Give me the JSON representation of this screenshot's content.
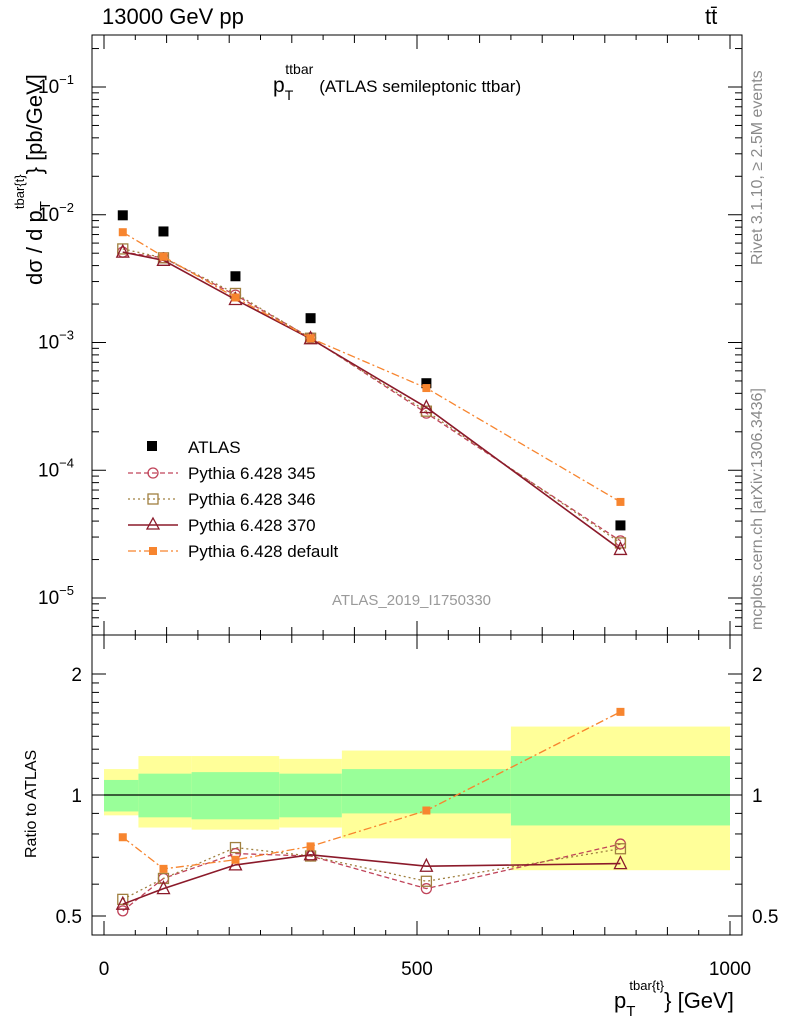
{
  "header": {
    "left": "13000 GeV pp",
    "right": "tt̄"
  },
  "plot": {
    "title_main": "p",
    "title_sub": "T",
    "title_sup": "ttbar",
    "title_rest": "(ATLAS semileptonic ttbar)",
    "watermark": "ATLAS_2019_I1750330",
    "side_rivet": "Rivet 3.1.10, ≥ 2.5M events",
    "side_mcplots": "mcplots.cern.ch [arXiv:1306.3436]",
    "ylabel_main": "dσ / d p",
    "ylabel_main_sub": "T",
    "ylabel_main_sup": "tbar{t}",
    "ylabel_main_unit": "} [pb/GeV]",
    "ylabel_ratio": "Ratio to ATLAS",
    "xlabel": "p",
    "xlabel_sub": "T",
    "xlabel_sup": "tbar{t}",
    "xlabel_unit": "} [GeV]",
    "yticks_main": [
      "10",
      "10",
      "10",
      "10",
      "10"
    ],
    "yticks_main_exp": [
      "−1",
      "−2",
      "−3",
      "−4",
      "−5"
    ],
    "yticks_ratio": [
      "2",
      "1",
      "0.5"
    ],
    "xticks": [
      "0",
      "500",
      "1000"
    ]
  },
  "colors": {
    "atlas": "#000000",
    "p345": "#c0445a",
    "p346": "#a08040",
    "p370": "#8b1a2a",
    "pdefault": "#f7852f",
    "band_inner": "#99ff99",
    "band_outer": "#ffff99"
  },
  "chart_data": {
    "type": "scatter",
    "xlim": [
      0,
      1000
    ],
    "ylim_main": [
      5.5e-06,
      0.25
    ],
    "yscale_main": "log",
    "ylim_ratio": [
      0.4,
      2.3
    ],
    "yscale_ratio": "log",
    "legend_placement": "lower-left",
    "x": [
      30,
      95,
      210,
      330,
      515,
      825
    ],
    "bins": [
      [
        0,
        55
      ],
      [
        55,
        140
      ],
      [
        140,
        280
      ],
      [
        280,
        380
      ],
      [
        380,
        650
      ],
      [
        650,
        1000
      ]
    ],
    "series": [
      {
        "name": "ATLAS",
        "style": "data",
        "values": [
          0.0099,
          0.0074,
          0.0033,
          0.00155,
          0.00048,
          3.7e-05
        ]
      },
      {
        "name": "Pythia 6.428 345",
        "style": "circle",
        "values": [
          0.0051,
          0.0046,
          0.00235,
          0.00109,
          0.00028,
          2.8e-05
        ],
        "ratio": [
          0.515,
          0.62,
          0.715,
          0.705,
          0.585,
          0.755
        ]
      },
      {
        "name": "Pythia 6.428 346",
        "style": "square",
        "values": [
          0.0054,
          0.0046,
          0.00242,
          0.00108,
          0.00029,
          2.7e-05
        ],
        "ratio": [
          0.55,
          0.62,
          0.74,
          0.705,
          0.61,
          0.735
        ]
      },
      {
        "name": "Pythia 6.428 370",
        "style": "triangle",
        "values": [
          0.0051,
          0.0044,
          0.00217,
          0.00107,
          0.00031,
          2.4e-05
        ],
        "ratio": [
          0.535,
          0.585,
          0.67,
          0.71,
          0.665,
          0.675
        ]
      },
      {
        "name": "Pythia 6.428 default",
        "style": "fsquare",
        "values": [
          0.0073,
          0.0047,
          0.00225,
          0.00108,
          0.00044,
          5.65e-05
        ],
        "ratio": [
          0.785,
          0.655,
          0.69,
          0.745,
          0.915,
          1.61
        ]
      }
    ],
    "ratio_band_inner": [
      [
        0.91,
        1.09
      ],
      [
        0.88,
        1.13
      ],
      [
        0.87,
        1.14
      ],
      [
        0.88,
        1.13
      ],
      [
        0.9,
        1.16
      ],
      [
        0.84,
        1.25
      ]
    ],
    "ratio_band_outer": [
      [
        0.89,
        1.16
      ],
      [
        0.83,
        1.25
      ],
      [
        0.82,
        1.25
      ],
      [
        0.83,
        1.23
      ],
      [
        0.78,
        1.29
      ],
      [
        0.65,
        1.48
      ]
    ]
  }
}
